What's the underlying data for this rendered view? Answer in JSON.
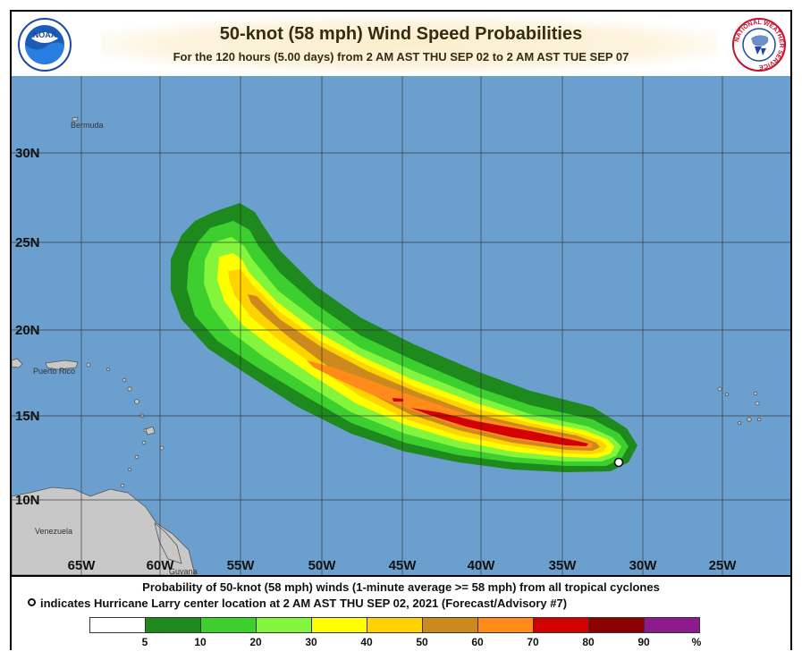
{
  "header": {
    "title": "50-knot (58 mph) Wind Speed Probabilities",
    "subtitle": "For the 120 hours (5.00 days) from 2 AM AST THU SEP 02 to 2 AM AST TUE SEP 07",
    "noaa_logo_text": "NOAA",
    "nws_logo_text": "NATIONAL WEATHER SERVICE"
  },
  "map": {
    "ocean_color": "#6b9fcd",
    "land_color": "#c8c8c8",
    "lat_labels": [
      "30N",
      "25N",
      "20N",
      "15N",
      "10N"
    ],
    "lon_labels": [
      "65W",
      "60W",
      "55W",
      "50W",
      "45W",
      "40W",
      "35W",
      "30W",
      "25W"
    ],
    "place_labels": [
      "Bermuda",
      "Puerto Rico",
      "Venezuela",
      "Guyana"
    ],
    "storm_center": {
      "lat": 13.4,
      "lon": 31.4
    }
  },
  "footer": {
    "line1": "Probability of 50-knot (58 mph) winds (1-minute average >= 58 mph) from all tropical cyclones",
    "line2": "indicates Hurricane Larry center location at 2 AM AST THU SEP 02, 2021 (Forecast/Advisory #7)"
  },
  "legend": {
    "colors": [
      "#ffffff",
      "#1e8a1e",
      "#3ccf2e",
      "#82f53c",
      "#ffff00",
      "#ffd200",
      "#cc8a1e",
      "#ff8c1a",
      "#d20000",
      "#8b0000",
      "#8e1a8e"
    ],
    "labels": [
      "5",
      "10",
      "20",
      "30",
      "40",
      "50",
      "60",
      "70",
      "80",
      "90",
      "%"
    ]
  }
}
